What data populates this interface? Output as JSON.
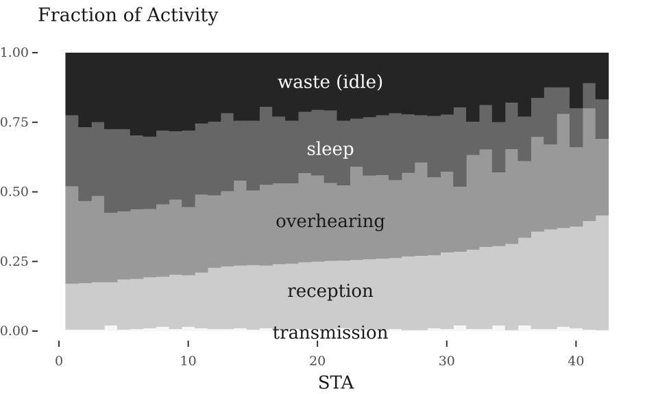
{
  "chart_data": {
    "type": "area",
    "ylabel": "Fraction of Activity",
    "xlabel": "STA",
    "xlim": [
      0,
      42
    ],
    "ylim": [
      0,
      1
    ],
    "xticks": [
      "0",
      "10",
      "20",
      "30",
      "40"
    ],
    "yticks": [
      "0.00",
      "0.25",
      "0.50",
      "0.75",
      "1.00"
    ],
    "x": [
      1,
      2,
      3,
      4,
      5,
      6,
      7,
      8,
      9,
      10,
      11,
      12,
      13,
      14,
      15,
      16,
      17,
      18,
      19,
      20,
      21,
      22,
      23,
      24,
      25,
      26,
      27,
      28,
      29,
      30,
      31,
      32,
      33,
      34,
      35,
      36,
      37,
      38,
      39,
      40,
      41,
      42
    ],
    "series": [
      {
        "name": "transmission",
        "color": "#f7f7f7",
        "values": [
          0.005,
          0.005,
          0.005,
          0.02,
          0.005,
          0.007,
          0.01,
          0.015,
          0.007,
          0.015,
          0.01,
          0.007,
          0.007,
          0.01,
          0.005,
          0.01,
          0.005,
          0.007,
          0.007,
          0.007,
          0.007,
          0.01,
          0.005,
          0.005,
          0.005,
          0.007,
          0.003,
          0.003,
          0.01,
          0.007,
          0.02,
          0.007,
          0.007,
          0.02,
          0.003,
          0.02,
          0.007,
          0.007,
          0.015,
          0.01,
          0.005,
          0.003
        ]
      },
      {
        "name": "reception",
        "color": "#cccccc",
        "values": [
          0.165,
          0.167,
          0.17,
          0.155,
          0.18,
          0.18,
          0.183,
          0.18,
          0.195,
          0.185,
          0.2,
          0.22,
          0.225,
          0.225,
          0.232,
          0.225,
          0.235,
          0.235,
          0.24,
          0.242,
          0.245,
          0.243,
          0.25,
          0.253,
          0.255,
          0.255,
          0.265,
          0.267,
          0.262,
          0.275,
          0.265,
          0.285,
          0.295,
          0.285,
          0.31,
          0.315,
          0.35,
          0.358,
          0.355,
          0.365,
          0.39,
          0.412
        ]
      },
      {
        "name": "overhearing",
        "color": "#999999",
        "values": [
          0.35,
          0.295,
          0.31,
          0.25,
          0.245,
          0.25,
          0.245,
          0.26,
          0.27,
          0.245,
          0.28,
          0.26,
          0.27,
          0.305,
          0.268,
          0.29,
          0.29,
          0.288,
          0.32,
          0.31,
          0.28,
          0.27,
          0.335,
          0.3,
          0.3,
          0.28,
          0.3,
          0.335,
          0.28,
          0.29,
          0.233,
          0.34,
          0.35,
          0.265,
          0.34,
          0.275,
          0.34,
          0.305,
          0.41,
          0.285,
          0.405,
          0.275
        ]
      },
      {
        "name": "sleep",
        "color": "#666666",
        "values": [
          0.255,
          0.265,
          0.265,
          0.3,
          0.295,
          0.265,
          0.26,
          0.265,
          0.245,
          0.275,
          0.255,
          0.265,
          0.28,
          0.215,
          0.25,
          0.28,
          0.24,
          0.225,
          0.22,
          0.235,
          0.26,
          0.232,
          0.173,
          0.21,
          0.215,
          0.24,
          0.21,
          0.17,
          0.22,
          0.205,
          0.285,
          0.12,
          0.16,
          0.18,
          0.167,
          0.16,
          0.14,
          0.205,
          0.095,
          0.14,
          0.09,
          0.142
        ]
      },
      {
        "name": "waste (idle)",
        "color": "#252525",
        "values": [
          0.225,
          0.268,
          0.25,
          0.275,
          0.275,
          0.298,
          0.302,
          0.28,
          0.283,
          0.28,
          0.255,
          0.248,
          0.218,
          0.245,
          0.245,
          0.195,
          0.23,
          0.245,
          0.213,
          0.206,
          0.208,
          0.245,
          0.237,
          0.232,
          0.225,
          0.218,
          0.222,
          0.225,
          0.228,
          0.223,
          0.197,
          0.248,
          0.188,
          0.25,
          0.18,
          0.23,
          0.163,
          0.125,
          0.125,
          0.2,
          0.11,
          0.168
        ]
      }
    ],
    "labels": [
      {
        "text": "waste (idle)",
        "x": 21,
        "y": 0.895,
        "color": "#ffffff"
      },
      {
        "text": "sleep",
        "x": 21,
        "y": 0.655,
        "color": "#ffffff"
      },
      {
        "text": "overhearing",
        "x": 21,
        "y": 0.395,
        "color": "#1a1a1a"
      },
      {
        "text": "reception",
        "x": 21,
        "y": 0.145,
        "color": "#1a1a1a"
      },
      {
        "text": "transmission",
        "x": 21,
        "y": -0.005,
        "color": "#1a1a1a"
      }
    ],
    "grid": false,
    "legend": "none"
  }
}
